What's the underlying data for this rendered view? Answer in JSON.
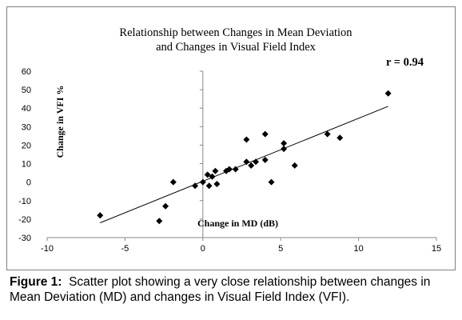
{
  "chart_data": {
    "type": "scatter",
    "title": [
      "Relationship between Changes in Mean Deviation",
      "and Changes in Visual Field Index"
    ],
    "xlabel": "Change in MD (dB)",
    "ylabel": "Change in VFI %",
    "annotation": "r = 0.94",
    "xlim": [
      -10,
      15
    ],
    "ylim": [
      -30,
      60
    ],
    "xticks": [
      -10,
      -5,
      0,
      5,
      10,
      15
    ],
    "yticks": [
      -30,
      -20,
      -10,
      0,
      10,
      20,
      30,
      40,
      50,
      60
    ],
    "grid": false,
    "legend": "none",
    "marker_color": "#000000",
    "points": [
      {
        "x": -6.6,
        "y": -18
      },
      {
        "x": -2.8,
        "y": -21
      },
      {
        "x": -2.4,
        "y": -13
      },
      {
        "x": -1.9,
        "y": 0
      },
      {
        "x": -0.5,
        "y": -2
      },
      {
        "x": 0.0,
        "y": 0
      },
      {
        "x": 0.3,
        "y": 4
      },
      {
        "x": 0.4,
        "y": -2
      },
      {
        "x": 0.6,
        "y": 3
      },
      {
        "x": 0.8,
        "y": 6
      },
      {
        "x": 0.9,
        "y": -1
      },
      {
        "x": 1.5,
        "y": 6
      },
      {
        "x": 1.7,
        "y": 7
      },
      {
        "x": 2.1,
        "y": 7
      },
      {
        "x": 2.8,
        "y": 23
      },
      {
        "x": 2.8,
        "y": 11
      },
      {
        "x": 3.1,
        "y": 9
      },
      {
        "x": 3.4,
        "y": 11
      },
      {
        "x": 4.0,
        "y": 26
      },
      {
        "x": 4.0,
        "y": 12
      },
      {
        "x": 4.4,
        "y": 0
      },
      {
        "x": 5.2,
        "y": 21
      },
      {
        "x": 5.2,
        "y": 18
      },
      {
        "x": 5.9,
        "y": 9
      },
      {
        "x": 8.0,
        "y": 26
      },
      {
        "x": 8.8,
        "y": 24
      },
      {
        "x": 11.9,
        "y": 48
      }
    ],
    "trendline": {
      "x": [
        -6.6,
        11.9
      ],
      "y": [
        -22,
        41
      ]
    }
  },
  "caption": {
    "label": "Figure 1:",
    "text": "Scatter plot showing a very close relationship between changes in Mean Deviation (MD) and changes in Visual Field Index (VFI)."
  }
}
